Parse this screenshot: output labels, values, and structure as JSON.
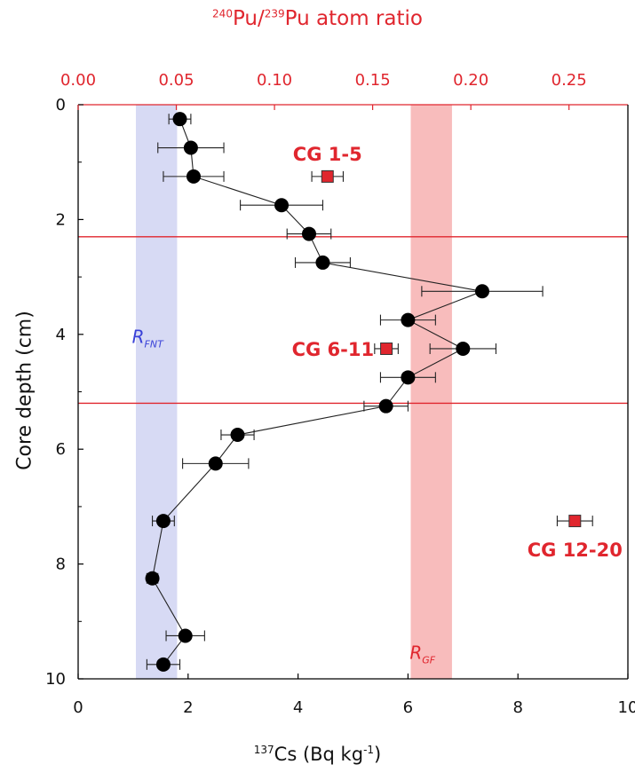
{
  "chart_data": {
    "type": "scatter",
    "top_axis": {
      "label_sup1": "240",
      "label_mid": "Pu/",
      "label_sup2": "239",
      "label_end": "Pu atom ratio",
      "range": [
        0,
        0.28
      ],
      "ticks": [
        "0.00",
        "0.05",
        "0.10",
        "0.15",
        "0.20",
        "0.25"
      ],
      "color": "#e0262e"
    },
    "bottom_axis": {
      "label_sup": "137",
      "label_main": "Cs (Bq kg",
      "label_exp": "-1",
      "label_close": ")",
      "range": [
        0,
        10
      ],
      "ticks": [
        "0",
        "2",
        "4",
        "6",
        "8",
        "10"
      ]
    },
    "y_axis": {
      "label": "Core depth (cm)",
      "range": [
        0,
        10
      ],
      "reversed": true,
      "ticks": [
        "0",
        "2",
        "4",
        "6",
        "8",
        "10"
      ]
    },
    "cs_series": {
      "color": "#000000",
      "points": [
        {
          "x": 1.85,
          "y": 0.25,
          "err": 0.2
        },
        {
          "x": 2.05,
          "y": 0.75,
          "err": 0.6
        },
        {
          "x": 2.1,
          "y": 1.25,
          "err": 0.55
        },
        {
          "x": 3.7,
          "y": 1.75,
          "err": 0.75
        },
        {
          "x": 4.2,
          "y": 2.25,
          "err": 0.4
        },
        {
          "x": 4.45,
          "y": 2.75,
          "err": 0.5
        },
        {
          "x": 7.35,
          "y": 3.25,
          "err": 1.1
        },
        {
          "x": 6.0,
          "y": 3.75,
          "err": 0.5
        },
        {
          "x": 7.0,
          "y": 4.25,
          "err": 0.6
        },
        {
          "x": 6.0,
          "y": 4.75,
          "err": 0.5
        },
        {
          "x": 5.6,
          "y": 5.25,
          "err": 0.4
        },
        {
          "x": 2.9,
          "y": 5.75,
          "err": 0.3
        },
        {
          "x": 2.5,
          "y": 6.25,
          "err": 0.6
        },
        {
          "x": 1.55,
          "y": 7.25,
          "err": 0.2
        },
        {
          "x": 1.35,
          "y": 8.25,
          "err": 0.1
        },
        {
          "x": 1.95,
          "y": 9.25,
          "err": 0.35
        },
        {
          "x": 1.55,
          "y": 9.75,
          "err": 0.3
        }
      ]
    },
    "pu_points": [
      {
        "label": "CG 1-5",
        "ratio": 0.127,
        "depth": 1.25,
        "err": 0.008
      },
      {
        "label": "CG 6-11",
        "ratio": 0.157,
        "depth": 4.25,
        "err": 0.006
      },
      {
        "label": "CG 12-20",
        "ratio": 0.253,
        "depth": 7.25,
        "err": 0.009
      }
    ],
    "pu_color": "#e0262e",
    "bands": [
      {
        "label": "R",
        "sub": "FNT",
        "x_from": 1.05,
        "x_to": 1.8,
        "color": "#c9cdf0",
        "text_color": "#3a42d8"
      },
      {
        "label": "R",
        "sub": "GF",
        "x_from": 6.05,
        "x_to": 6.8,
        "color": "#f5a6a6",
        "text_color": "#e0262e"
      }
    ],
    "hlines": [
      2.3,
      5.2
    ],
    "hline_color": "#e0262e"
  }
}
